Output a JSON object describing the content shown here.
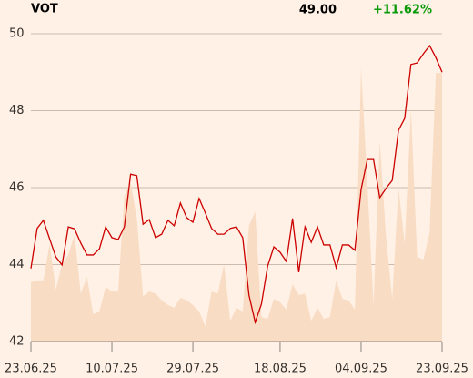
{
  "chart_data": {
    "type": "line",
    "title": "VOT",
    "last_price": "49.00",
    "change": "+11.62%",
    "categories": [
      "23.06.25",
      null,
      null,
      null,
      null,
      null,
      null,
      null,
      null,
      null,
      null,
      null,
      null,
      "10.07.25",
      null,
      null,
      null,
      null,
      null,
      null,
      null,
      null,
      null,
      null,
      null,
      null,
      "29.07.25",
      null,
      null,
      null,
      null,
      null,
      null,
      null,
      null,
      null,
      null,
      null,
      null,
      null,
      "18.08.25",
      null,
      null,
      null,
      null,
      null,
      null,
      null,
      null,
      null,
      null,
      null,
      null,
      "04.09.25",
      null,
      null,
      null,
      null,
      null,
      null,
      null,
      null,
      null,
      null,
      null,
      null,
      "23.09.25"
    ],
    "series": [
      {
        "type": "area",
        "color": "#f9dcc4",
        "values": [
          43.54,
          43.59,
          43.59,
          44.53,
          43.35,
          44.01,
          44.25,
          44.77,
          43.25,
          43.68,
          42.71,
          42.78,
          43.42,
          43.3,
          43.3,
          45.79,
          46.14,
          45.2,
          43.18,
          43.3,
          43.25,
          43.07,
          42.95,
          42.88,
          43.14,
          43.07,
          42.95,
          42.78,
          42.4,
          43.3,
          43.25,
          44.01,
          42.54,
          42.88,
          42.78,
          45.01,
          45.38,
          42.64,
          42.59,
          43.11,
          43.02,
          42.83,
          43.49,
          43.21,
          43.25,
          42.54,
          42.88,
          42.59,
          42.64,
          43.59,
          43.11,
          43.07,
          42.83,
          49.1,
          46.14,
          42.95,
          47.21,
          44.72,
          43.11,
          46.02,
          44.53,
          48.04,
          44.2,
          44.13,
          44.84,
          48.98,
          48.98
        ]
      },
      {
        "type": "line",
        "color": "#cc0000",
        "values": [
          43.9,
          44.94,
          45.15,
          44.67,
          44.2,
          43.99,
          44.98,
          44.93,
          44.56,
          44.25,
          44.25,
          44.41,
          44.98,
          44.7,
          44.65,
          44.98,
          46.35,
          46.31,
          45.05,
          45.17,
          44.7,
          44.79,
          45.15,
          45.01,
          45.6,
          45.22,
          45.1,
          45.72,
          45.34,
          44.94,
          44.79,
          44.79,
          44.94,
          44.98,
          44.7,
          43.21,
          42.5,
          42.97,
          43.96,
          44.46,
          44.32,
          44.08,
          45.2,
          43.8,
          44.98,
          44.58,
          44.98,
          44.51,
          44.51,
          43.92,
          44.51,
          44.51,
          44.37,
          45.95,
          46.73,
          46.73,
          45.74,
          45.98,
          46.19,
          47.49,
          47.8,
          49.2,
          49.24,
          49.48,
          49.69,
          49.38,
          49
        ]
      }
    ],
    "ylim": [
      42,
      50
    ],
    "yticks": [
      42,
      44,
      46,
      48,
      50
    ],
    "grid": true,
    "change_color": "#0a9a0a"
  }
}
